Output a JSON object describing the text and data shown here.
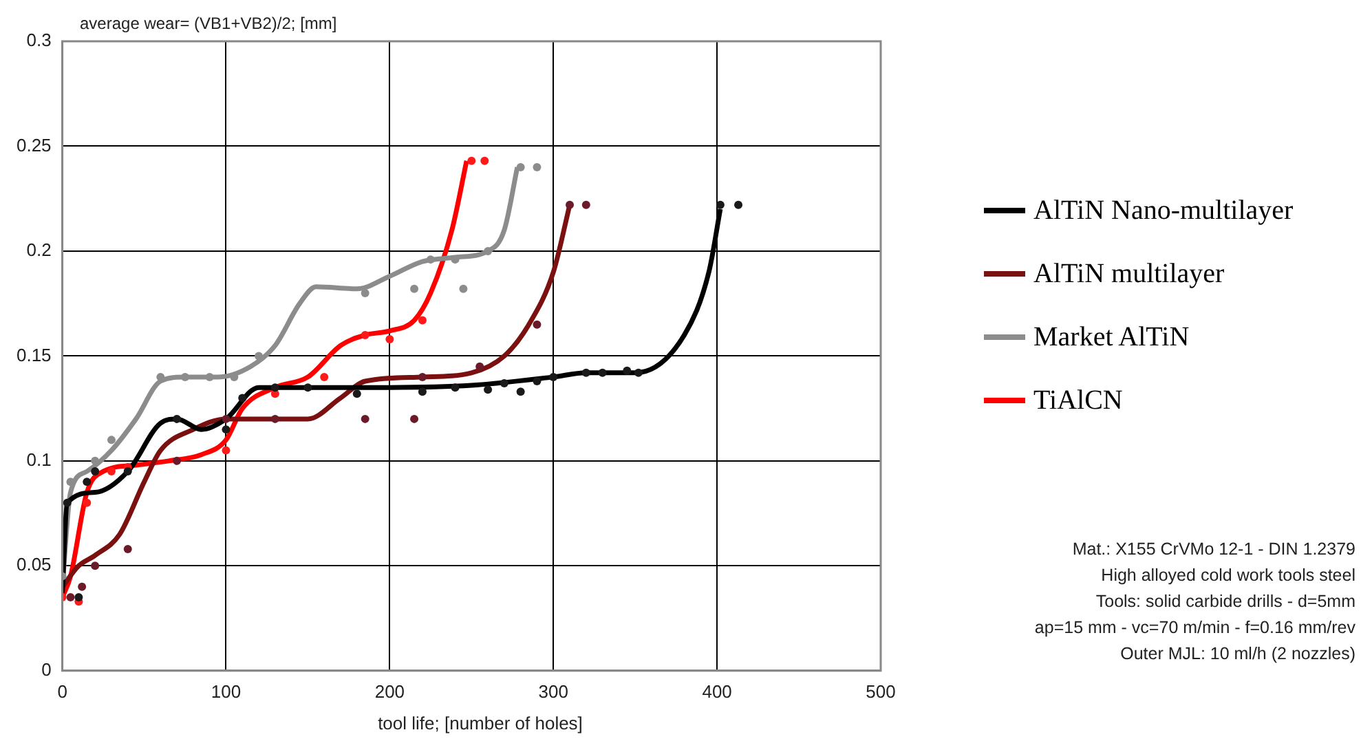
{
  "chart_data": {
    "type": "line",
    "xlabel": "tool life; [number of holes]",
    "ylabel": "average wear= (VB1+VB2)/2; [mm]",
    "xlim": [
      0,
      500
    ],
    "xticks": [
      0,
      100,
      200,
      300,
      400,
      500
    ],
    "ylim": [
      0,
      0.3
    ],
    "yticks": [
      0,
      0.05,
      0.1,
      0.15,
      0.2,
      0.25,
      0.3
    ],
    "grid": true,
    "legend": "right",
    "series": [
      {
        "name": "AlTiN Nano-multilayer",
        "type": "line",
        "marker": "none",
        "color": "#000000",
        "x": [
          0,
          3,
          20,
          40,
          60,
          70,
          85,
          100,
          120,
          150,
          200,
          250,
          300,
          320,
          350,
          380,
          395,
          402
        ],
        "values": [
          0.037,
          0.08,
          0.085,
          0.095,
          0.118,
          0.12,
          0.115,
          0.12,
          0.135,
          0.135,
          0.135,
          0.136,
          0.14,
          0.142,
          0.142,
          0.16,
          0.19,
          0.22
        ]
      },
      {
        "name": "AlTiN multilayer",
        "type": "line",
        "marker": "none",
        "color": "#7b1010",
        "x": [
          0,
          10,
          20,
          35,
          50,
          60,
          80,
          100,
          120,
          150,
          170,
          185,
          220,
          250,
          270,
          285,
          300,
          310
        ],
        "values": [
          0.04,
          0.05,
          0.055,
          0.065,
          0.09,
          0.105,
          0.115,
          0.12,
          0.12,
          0.12,
          0.13,
          0.138,
          0.14,
          0.142,
          0.15,
          0.165,
          0.19,
          0.222
        ]
      },
      {
        "name": "Market AlTiN",
        "type": "line",
        "marker": "none",
        "color": "#8c8c8c",
        "x": [
          0,
          5,
          15,
          30,
          45,
          60,
          75,
          95,
          115,
          130,
          145,
          155,
          180,
          200,
          220,
          240,
          260,
          270,
          278
        ],
        "values": [
          0.04,
          0.085,
          0.095,
          0.105,
          0.12,
          0.138,
          0.14,
          0.14,
          0.145,
          0.155,
          0.175,
          0.183,
          0.182,
          0.188,
          0.195,
          0.197,
          0.2,
          0.21,
          0.24
        ]
      },
      {
        "name": "TiAlCN",
        "type": "line",
        "marker": "none",
        "color": "#ff0000",
        "x": [
          0,
          5,
          15,
          25,
          45,
          65,
          85,
          100,
          110,
          130,
          150,
          170,
          185,
          200,
          215,
          225,
          238,
          247
        ],
        "values": [
          0.035,
          0.045,
          0.085,
          0.095,
          0.098,
          0.1,
          0.103,
          0.11,
          0.125,
          0.135,
          0.14,
          0.155,
          0.16,
          0.162,
          0.167,
          0.18,
          0.21,
          0.243
        ]
      },
      {
        "type": "scatter",
        "marker": "circle",
        "color": "#1a1a1a",
        "x": [
          3,
          10,
          15,
          20,
          40,
          70,
          100,
          110,
          130,
          150,
          180,
          220,
          240,
          260,
          270,
          280,
          290,
          300,
          320,
          330,
          345,
          352,
          402,
          413
        ],
        "values": [
          0.08,
          0.035,
          0.09,
          0.095,
          0.095,
          0.12,
          0.115,
          0.13,
          0.135,
          0.135,
          0.132,
          0.133,
          0.135,
          0.134,
          0.137,
          0.133,
          0.138,
          0.14,
          0.142,
          0.142,
          0.143,
          0.142,
          0.222,
          0.222
        ]
      },
      {
        "type": "scatter",
        "marker": "circle",
        "color": "#6b1a2a",
        "x": [
          5,
          12,
          20,
          40,
          70,
          100,
          130,
          185,
          215,
          220,
          255,
          290,
          310,
          320
        ],
        "values": [
          0.035,
          0.04,
          0.05,
          0.058,
          0.1,
          0.12,
          0.12,
          0.12,
          0.12,
          0.14,
          0.145,
          0.165,
          0.222,
          0.222
        ]
      },
      {
        "type": "scatter",
        "marker": "circle",
        "color": "#8c8c8c",
        "x": [
          0,
          5,
          20,
          30,
          60,
          75,
          90,
          105,
          120,
          185,
          215,
          225,
          240,
          245,
          260,
          280,
          290
        ],
        "values": [
          0.045,
          0.09,
          0.1,
          0.11,
          0.14,
          0.14,
          0.14,
          0.14,
          0.15,
          0.18,
          0.182,
          0.196,
          0.196,
          0.182,
          0.2,
          0.24,
          0.24
        ]
      },
      {
        "type": "scatter",
        "marker": "circle",
        "color": "#ff1a1a",
        "x": [
          0,
          10,
          15,
          30,
          40,
          100,
          130,
          160,
          185,
          200,
          220,
          250,
          258
        ],
        "values": [
          0.035,
          0.033,
          0.08,
          0.095,
          0.097,
          0.105,
          0.132,
          0.14,
          0.16,
          0.158,
          0.167,
          0.243,
          0.243
        ]
      }
    ],
    "annotations": [
      "Mat.: X155 CrVMo 12-1 - DIN 1.2379",
      "High alloyed cold work tools steel",
      "Tools: solid carbide drills - d=5mm",
      "ap=15 mm -  vc=70 m/min - f=0.16 mm/rev",
      "Outer MJL: 10 ml/h (2 nozzles)"
    ]
  }
}
